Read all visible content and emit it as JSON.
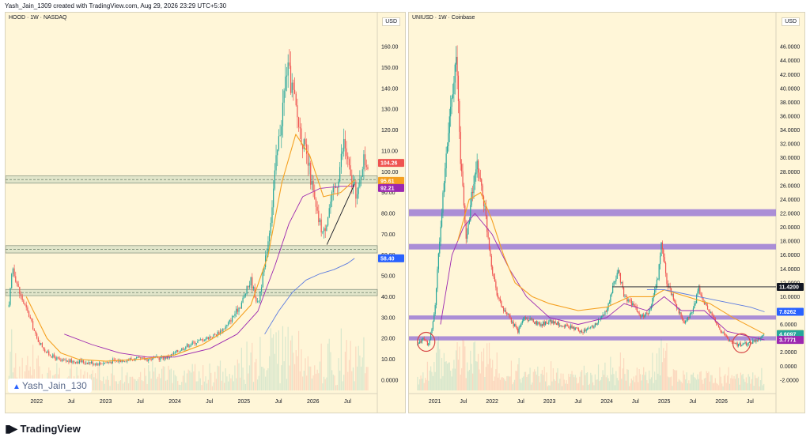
{
  "header": {
    "attribution": "Yash_Jain_1309 created with TradingView.com, Aug 29, 2026 23:29 UTC+5:30"
  },
  "footer": {
    "brand": "TradingView",
    "logo_icon": "tradingview-logo-icon"
  },
  "watermark": {
    "text": "Yash_Jain_130",
    "icon": "tradingview-mark-icon"
  },
  "colors": {
    "background": "#fff6d8",
    "candle_up": "#26a69a",
    "candle_down": "#ef5350",
    "ema_fast": "#f5a020",
    "ema_slow": "#9c27b0",
    "ma_blue": "#5b7be0",
    "zone": "#9c7bd6"
  },
  "chart_data": [
    {
      "type": "candlestick",
      "symbol_label": "HOOD · 1W · NASDAQ",
      "currency": "USD",
      "x_ticks": [
        "2022",
        "Jul",
        "2023",
        "Jul",
        "2024",
        "Jul",
        "2025",
        "Jul",
        "2026",
        "Jul"
      ],
      "x_tick_positions": [
        2022.0,
        2022.5,
        2023.0,
        2023.5,
        2024.0,
        2024.5,
        2025.0,
        2025.5,
        2026.0,
        2026.5
      ],
      "y_ticks": [
        "160.00",
        "150.00",
        "140.00",
        "130.00",
        "120.00",
        "110.00",
        "100.00",
        "90.00",
        "80.00",
        "70.00",
        "60.00",
        "50.00",
        "40.00",
        "30.00",
        "20.00",
        "10.00",
        "0.0000"
      ],
      "ylim": [
        -5,
        165
      ],
      "xlim": [
        2021.55,
        2026.93
      ],
      "price_tags": [
        {
          "label": "104.26",
          "value": 104.26,
          "color": "#ef5350"
        },
        {
          "label": "95.61",
          "value": 95.61,
          "color": "#f5a020"
        },
        {
          "label": "92.21",
          "value": 92.21,
          "color": "#9c27b0"
        },
        {
          "label": "58.40",
          "value": 58.4,
          "color": "#2962ff"
        }
      ],
      "zones": [
        [
          94.5,
          98.0
        ],
        [
          61.0,
          64.5
        ],
        [
          40.5,
          43.5
        ]
      ],
      "price_path": [
        [
          2021.6,
          35
        ],
        [
          2021.65,
          55
        ],
        [
          2021.75,
          42
        ],
        [
          2021.9,
          30
        ],
        [
          2022.0,
          20
        ],
        [
          2022.15,
          13
        ],
        [
          2022.35,
          9
        ],
        [
          2022.6,
          9
        ],
        [
          2022.9,
          8
        ],
        [
          2023.1,
          9
        ],
        [
          2023.35,
          10
        ],
        [
          2023.6,
          10
        ],
        [
          2023.9,
          11
        ],
        [
          2024.0,
          13
        ],
        [
          2024.2,
          17
        ],
        [
          2024.45,
          20
        ],
        [
          2024.6,
          22
        ],
        [
          2024.75,
          26
        ],
        [
          2024.95,
          36
        ],
        [
          2025.1,
          48
        ],
        [
          2025.2,
          36
        ],
        [
          2025.3,
          55
        ],
        [
          2025.38,
          75
        ],
        [
          2025.45,
          100
        ],
        [
          2025.55,
          128
        ],
        [
          2025.62,
          150
        ],
        [
          2025.7,
          140
        ],
        [
          2025.78,
          125
        ],
        [
          2025.85,
          115
        ],
        [
          2025.95,
          100
        ],
        [
          2026.05,
          80
        ],
        [
          2026.15,
          70
        ],
        [
          2026.25,
          85
        ],
        [
          2026.35,
          95
        ],
        [
          2026.45,
          115
        ],
        [
          2026.55,
          95
        ],
        [
          2026.65,
          88
        ],
        [
          2026.72,
          106
        ],
        [
          2026.8,
          104
        ]
      ],
      "ema_fast_path": [
        [
          2021.85,
          40
        ],
        [
          2022.0,
          30
        ],
        [
          2022.15,
          20
        ],
        [
          2022.35,
          13
        ],
        [
          2022.6,
          10
        ],
        [
          2023.0,
          9
        ],
        [
          2023.5,
          10
        ],
        [
          2024.0,
          12
        ],
        [
          2024.4,
          17
        ],
        [
          2024.8,
          25
        ],
        [
          2025.1,
          36
        ],
        [
          2025.35,
          60
        ],
        [
          2025.55,
          95
        ],
        [
          2025.75,
          118
        ],
        [
          2025.95,
          108
        ],
        [
          2026.15,
          88
        ],
        [
          2026.4,
          90
        ],
        [
          2026.6,
          96
        ]
      ],
      "ema_slow_path": [
        [
          2022.4,
          22
        ],
        [
          2022.8,
          17
        ],
        [
          2023.2,
          13
        ],
        [
          2023.6,
          11
        ],
        [
          2024.0,
          11
        ],
        [
          2024.5,
          15
        ],
        [
          2024.9,
          22
        ],
        [
          2025.2,
          33
        ],
        [
          2025.45,
          55
        ],
        [
          2025.65,
          75
        ],
        [
          2025.85,
          88
        ],
        [
          2026.1,
          92
        ],
        [
          2026.4,
          93
        ],
        [
          2026.6,
          93
        ]
      ],
      "ma_blue_path": [
        [
          2025.3,
          22
        ],
        [
          2025.5,
          33
        ],
        [
          2025.7,
          42
        ],
        [
          2025.9,
          48
        ],
        [
          2026.1,
          51
        ],
        [
          2026.3,
          53
        ],
        [
          2026.5,
          56
        ],
        [
          2026.6,
          58.4
        ]
      ],
      "trendline": [
        [
          2026.2,
          65
        ],
        [
          2026.6,
          94
        ]
      ]
    },
    {
      "type": "candlestick",
      "symbol_label": "UNIUSD · 1W · Coinbase",
      "currency": "USD",
      "x_ticks": [
        "2021",
        "Jul",
        "2022",
        "Jul",
        "2023",
        "Jul",
        "2024",
        "Jul",
        "2025",
        "Jul",
        "2026",
        "Jul"
      ],
      "x_tick_positions": [
        2021.0,
        2021.5,
        2022.0,
        2022.5,
        2023.0,
        2023.5,
        2024.0,
        2024.5,
        2025.0,
        2025.5,
        2026.0,
        2026.5
      ],
      "y_ticks": [
        "46.0000",
        "44.0000",
        "42.0000",
        "40.0000",
        "38.0000",
        "36.0000",
        "34.0000",
        "32.0000",
        "30.0000",
        "28.0000",
        "26.0000",
        "24.0000",
        "22.0000",
        "20.0000",
        "18.0000",
        "16.0000",
        "14.0000",
        "12.0000",
        "10.0000",
        "8.0000",
        "6.0000",
        "4.0000",
        "2.0000",
        "0.0000",
        "-2.0000"
      ],
      "ylim": [
        -3.5,
        47.5
      ],
      "xlim": [
        2020.55,
        2026.95
      ],
      "price_tags": [
        {
          "label": "11.4200",
          "value": 11.42,
          "color": "#131722"
        },
        {
          "label": "7.8262",
          "value": 7.8262,
          "color": "#2962ff"
        },
        {
          "label": "4.6242",
          "value": 4.6242,
          "color": "#f5a020"
        },
        {
          "label": "4.6097",
          "value": 4.6097,
          "color": "#26a69a"
        },
        {
          "label": "3.7771",
          "value": 3.7771,
          "color": "#9c27b0"
        }
      ],
      "zones": [
        [
          21.6,
          22.6
        ],
        [
          16.8,
          17.6
        ],
        [
          6.7,
          7.3
        ],
        [
          3.7,
          4.3
        ]
      ],
      "price_path": [
        [
          2020.7,
          3
        ],
        [
          2020.8,
          4
        ],
        [
          2020.9,
          3
        ],
        [
          2021.0,
          8
        ],
        [
          2021.1,
          20
        ],
        [
          2021.2,
          30
        ],
        [
          2021.3,
          40
        ],
        [
          2021.38,
          44
        ],
        [
          2021.45,
          30
        ],
        [
          2021.55,
          18
        ],
        [
          2021.65,
          25
        ],
        [
          2021.75,
          29
        ],
        [
          2021.85,
          24
        ],
        [
          2022.0,
          14
        ],
        [
          2022.1,
          10
        ],
        [
          2022.2,
          8
        ],
        [
          2022.3,
          7
        ],
        [
          2022.45,
          5
        ],
        [
          2022.55,
          7
        ],
        [
          2022.7,
          6.5
        ],
        [
          2022.85,
          6
        ],
        [
          2023.0,
          6.5
        ],
        [
          2023.2,
          6
        ],
        [
          2023.4,
          5.5
        ],
        [
          2023.6,
          5
        ],
        [
          2023.8,
          6
        ],
        [
          2024.0,
          8
        ],
        [
          2024.1,
          11
        ],
        [
          2024.2,
          14
        ],
        [
          2024.3,
          10
        ],
        [
          2024.45,
          9
        ],
        [
          2024.6,
          7
        ],
        [
          2024.75,
          8
        ],
        [
          2024.9,
          13
        ],
        [
          2024.95,
          18
        ],
        [
          2025.05,
          12
        ],
        [
          2025.2,
          9
        ],
        [
          2025.35,
          6
        ],
        [
          2025.5,
          8
        ],
        [
          2025.6,
          11
        ],
        [
          2025.7,
          9
        ],
        [
          2025.85,
          7
        ],
        [
          2026.0,
          5
        ],
        [
          2026.15,
          3.5
        ],
        [
          2026.35,
          3
        ],
        [
          2026.55,
          3.5
        ],
        [
          2026.75,
          4.6
        ]
      ],
      "ema_fast_path": [
        [
          2021.4,
          18
        ],
        [
          2021.6,
          24
        ],
        [
          2021.8,
          25
        ],
        [
          2022.0,
          21
        ],
        [
          2022.2,
          16
        ],
        [
          2022.4,
          12
        ],
        [
          2022.7,
          10
        ],
        [
          2023.0,
          9
        ],
        [
          2023.5,
          8
        ],
        [
          2024.0,
          8.5
        ],
        [
          2024.4,
          10
        ],
        [
          2024.8,
          10
        ],
        [
          2025.0,
          11
        ],
        [
          2025.4,
          10
        ],
        [
          2025.8,
          9
        ],
        [
          2026.2,
          7
        ],
        [
          2026.75,
          4.62
        ]
      ],
      "ema_slow_path": [
        [
          2021.1,
          6
        ],
        [
          2021.3,
          16
        ],
        [
          2021.5,
          20
        ],
        [
          2021.7,
          22
        ],
        [
          2022.0,
          19
        ],
        [
          2022.3,
          14
        ],
        [
          2022.6,
          10
        ],
        [
          2023.0,
          7
        ],
        [
          2023.5,
          6
        ],
        [
          2024.0,
          7
        ],
        [
          2024.3,
          9
        ],
        [
          2024.7,
          8
        ],
        [
          2025.0,
          10
        ],
        [
          2025.3,
          8
        ],
        [
          2025.7,
          8
        ],
        [
          2026.1,
          5
        ],
        [
          2026.75,
          3.78
        ]
      ],
      "ma_blue_path": [
        [
          2024.7,
          11
        ],
        [
          2025.0,
          11
        ],
        [
          2025.3,
          10.5
        ],
        [
          2025.6,
          10
        ],
        [
          2025.9,
          9.5
        ],
        [
          2026.2,
          9
        ],
        [
          2026.5,
          8.5
        ],
        [
          2026.75,
          7.83
        ]
      ],
      "horizontal_line": {
        "value": 11.42,
        "from": 2024.1
      },
      "circles": [
        [
          2020.85,
          3.5
        ],
        [
          2026.35,
          3.3
        ]
      ]
    }
  ]
}
